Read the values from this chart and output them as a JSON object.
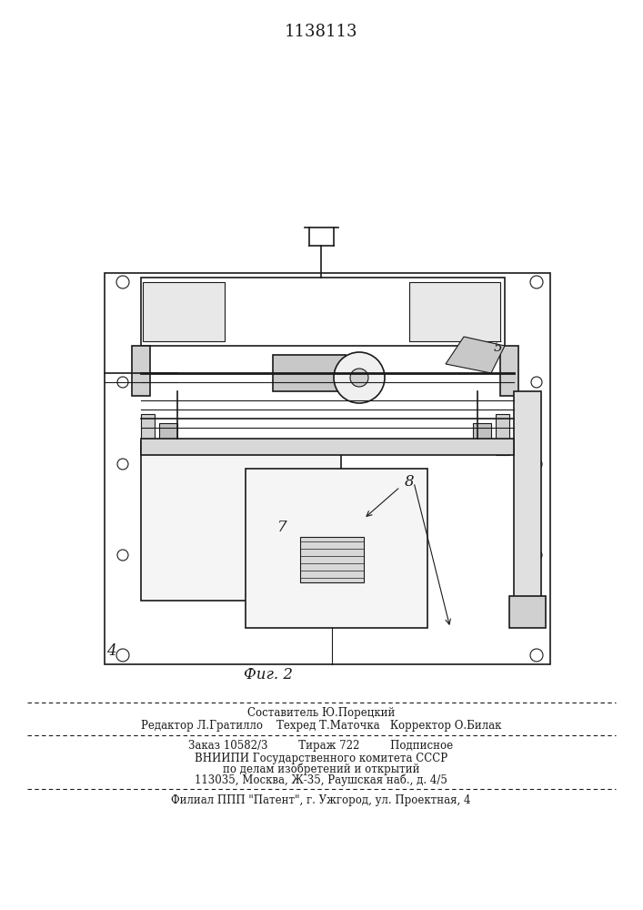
{
  "patent_number": "1138113",
  "fig_label": "Фиг. 2",
  "bg_color": "#ffffff",
  "line_color": "#1a1a1a",
  "footer_lines": [
    "Составитель Ю.Порецкий",
    "Редактор Л.Гратилло    Техред Т.Маточка   Корректор О.Билак",
    "Заказ 10582/3         Тираж 722         Подписное",
    "ВНИИПИ Государственного комитета СССР",
    "по делам изобретений и открытий",
    "113035, Москва, Ж-35, Раушская наб., д. 4/5",
    "Филиал ППП \"Патент\", г. Ужгород, ул. Проектная, 4"
  ]
}
